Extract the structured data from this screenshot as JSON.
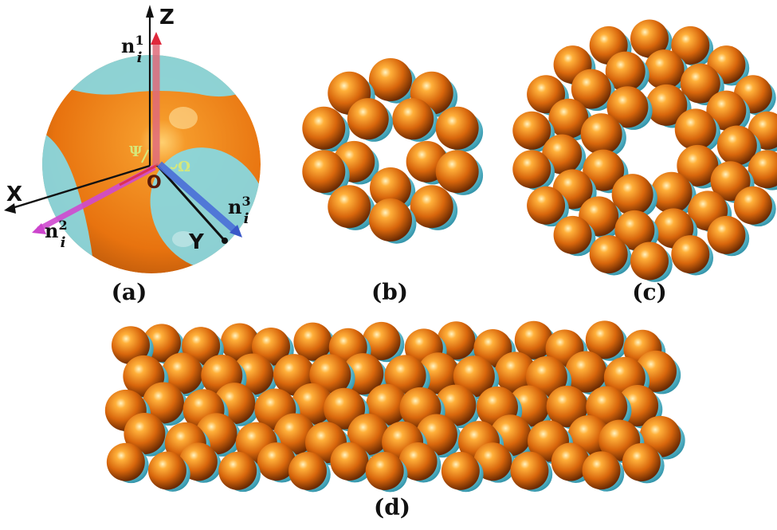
{
  "figure": {
    "panels": [
      {
        "id": "a",
        "label": "(a)"
      },
      {
        "id": "b",
        "label": "(b)"
      },
      {
        "id": "c",
        "label": "(c)"
      },
      {
        "id": "d",
        "label": "(d)"
      }
    ],
    "panel_a": {
      "axes": {
        "x": "X",
        "y": "Y",
        "z": "Z"
      },
      "origin": "O",
      "angles": {
        "psi": "Ψ",
        "omega": "Ω"
      },
      "vectors": {
        "n1": {
          "base": "n",
          "sub": "i",
          "sup": "1"
        },
        "n2": {
          "base": "n",
          "sub": "i",
          "sup": "2"
        },
        "n3": {
          "base": "n",
          "sub": "i",
          "sup": "3"
        }
      }
    },
    "colors": {
      "particle_orange": "#e8730f",
      "patch_cyan": "#7fd9e6",
      "axis_black": "#111111",
      "n1_red": "#e0293c",
      "n2_magenta": "#cc44cc",
      "n3_blue": "#3a58c8",
      "angle_label_green": "#d6e87a"
    },
    "structures": {
      "b": "ring cluster",
      "c": "cage cluster",
      "d": "tube cluster"
    }
  }
}
